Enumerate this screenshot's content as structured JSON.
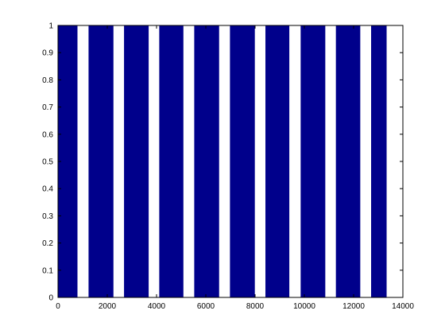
{
  "chart_data": {
    "type": "area",
    "title": "",
    "xlabel": "",
    "ylabel": "",
    "xlim": [
      0,
      14000
    ],
    "ylim": [
      0,
      1
    ],
    "grid": false,
    "xticks": [
      0,
      2000,
      4000,
      6000,
      8000,
      10000,
      12000,
      14000
    ],
    "yticks": [
      0,
      0.1,
      0.2,
      0.3,
      0.4,
      0.5,
      0.6,
      0.7,
      0.8,
      0.9,
      1
    ],
    "xtick_labels": [
      "0",
      "2000",
      "4000",
      "6000",
      "8000",
      "10000",
      "12000",
      "14000"
    ],
    "ytick_labels": [
      "0",
      "0.1",
      "0.2",
      "0.3",
      "0.4",
      "0.5",
      "0.6",
      "0.7",
      "0.8",
      "0.9",
      "1"
    ],
    "series": [
      {
        "color": "#00008b",
        "value": 1,
        "segments": [
          [
            0,
            790
          ],
          [
            1240,
            2250
          ],
          [
            2680,
            3680
          ],
          [
            4110,
            5090
          ],
          [
            5530,
            6540
          ],
          [
            6980,
            7990
          ],
          [
            8420,
            9390
          ],
          [
            9850,
            10850
          ],
          [
            11280,
            12270
          ],
          [
            12710,
            13340
          ]
        ]
      }
    ]
  }
}
